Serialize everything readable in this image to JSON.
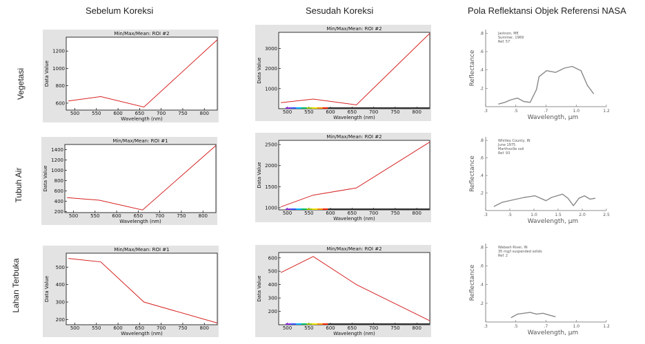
{
  "columns": [
    "Sebelum Koreksi",
    "Sesudah Koreksi",
    "Pola Reflektansi Objek Referensi NASA"
  ],
  "rows": [
    "Vegetasi",
    "Tubuh Air",
    "Lahan Terbuka"
  ],
  "chart_data": [
    {
      "id": "veg-before",
      "type": "line",
      "title": "Min/Max/Mean: ROI #2",
      "xlabel": "Wavelength (nm)",
      "ylabel": "Data Value",
      "xlim": [
        480,
        830
      ],
      "ylim": [
        520,
        1360
      ],
      "xticks": [
        500,
        550,
        600,
        650,
        700,
        750,
        800
      ],
      "yticks": [
        600,
        800,
        1000,
        1200
      ],
      "x": [
        485,
        560,
        660,
        830
      ],
      "y": [
        625,
        675,
        555,
        1330
      ],
      "color": "#d62020"
    },
    {
      "id": "veg-after",
      "type": "line",
      "title": "Min/Max/Mean: ROI #2",
      "xlabel": "Wavelength (nm)",
      "ylabel": "Data Value",
      "xlim": [
        480,
        830
      ],
      "ylim": [
        0,
        3800
      ],
      "xticks": [
        500,
        550,
        600,
        650,
        700,
        750,
        800
      ],
      "yticks": [
        1000,
        2000,
        3000
      ],
      "x": [
        485,
        560,
        660,
        830
      ],
      "y": [
        300,
        480,
        190,
        3750
      ],
      "color": "#d62020"
    },
    {
      "id": "water-before",
      "type": "line",
      "title": "Min/Max/Mean: ROI #1",
      "xlabel": "Wavelength (nm)",
      "ylabel": "Data Value",
      "xlim": [
        480,
        830
      ],
      "ylim": [
        180,
        1500
      ],
      "xticks": [
        500,
        550,
        600,
        650,
        700,
        750,
        800
      ],
      "yticks": [
        200,
        400,
        600,
        800,
        1000,
        1200,
        1400
      ],
      "x": [
        485,
        560,
        660,
        830
      ],
      "y": [
        470,
        420,
        230,
        1480
      ],
      "color": "#d62020"
    },
    {
      "id": "water-after",
      "type": "line",
      "title": "Min/Max/Mean: ROI #2",
      "xlabel": "Wavelength (nm)",
      "ylabel": "Data Value",
      "xlim": [
        480,
        830
      ],
      "ylim": [
        950,
        2600
      ],
      "xticks": [
        500,
        550,
        600,
        650,
        700,
        750,
        800
      ],
      "yticks": [
        1000,
        1500,
        2000,
        2500
      ],
      "x": [
        485,
        560,
        660,
        830
      ],
      "y": [
        1020,
        1300,
        1470,
        2560
      ],
      "color": "#d62020"
    },
    {
      "id": "soil-before",
      "type": "line",
      "title": "Min/Max/Mean: ROI #1",
      "xlabel": "Wavelength (nm)",
      "ylabel": "Data Value",
      "xlim": [
        480,
        830
      ],
      "ylim": [
        170,
        580
      ],
      "xticks": [
        500,
        550,
        600,
        650,
        700,
        750,
        800
      ],
      "yticks": [
        200,
        300,
        400,
        500
      ],
      "x": [
        485,
        560,
        660,
        830
      ],
      "y": [
        550,
        530,
        300,
        180
      ],
      "color": "#d62020"
    },
    {
      "id": "soil-after",
      "type": "line",
      "title": "Min/Max/Mean: ROI #2",
      "xlabel": "Wavelength (nm)",
      "ylabel": "Data Value",
      "xlim": [
        480,
        830
      ],
      "ylim": [
        100,
        640
      ],
      "xticks": [
        500,
        550,
        600,
        650,
        700,
        750,
        800
      ],
      "yticks": [
        200,
        300,
        400,
        500,
        600
      ],
      "x": [
        485,
        560,
        660,
        830
      ],
      "y": [
        490,
        610,
        400,
        130
      ],
      "color": "#d62020"
    },
    {
      "id": "nasa-veg",
      "type": "line",
      "xlabel": "Wavelength, μm",
      "ylabel": "Reflectance",
      "xlim": [
        0.3,
        1.25
      ],
      "ylim": [
        0,
        0.9
      ],
      "xticks": [
        ".3",
        ".5",
        ".7",
        "1.0",
        "1.2"
      ],
      "yticks": [
        ".2",
        ".4",
        ".6",
        ".8"
      ],
      "note": [
        "Jackson, ME",
        "Summer, 1969",
        "Ref. 57"
      ],
      "x": [
        0.4,
        0.45,
        0.5,
        0.55,
        0.6,
        0.65,
        0.7,
        0.72,
        0.78,
        0.85,
        0.92,
        0.98,
        1.05,
        1.1,
        1.15
      ],
      "y": [
        0.03,
        0.05,
        0.08,
        0.1,
        0.06,
        0.05,
        0.2,
        0.35,
        0.42,
        0.4,
        0.45,
        0.47,
        0.42,
        0.25,
        0.15
      ],
      "color": "#888888"
    },
    {
      "id": "nasa-water",
      "type": "line",
      "xlabel": "Wavelength, μm",
      "ylabel": "Reflectance",
      "xlim": [
        0.3,
        2.5
      ],
      "ylim": [
        0,
        0.9
      ],
      "xticks": [
        ".3",
        ".5",
        "1.0",
        "1.5",
        "2.0",
        "2.5"
      ],
      "yticks": [
        ".2",
        ".4",
        ".6",
        ".8"
      ],
      "note": [
        "Whitley County, IN",
        "June 1975",
        "Marthsville soil",
        "Ref. 93"
      ],
      "x": [
        0.45,
        0.6,
        0.8,
        1.0,
        1.2,
        1.4,
        1.5,
        1.7,
        1.8,
        1.9,
        2.0,
        2.1,
        2.2,
        2.3
      ],
      "y": [
        0.05,
        0.1,
        0.13,
        0.16,
        0.18,
        0.12,
        0.16,
        0.2,
        0.15,
        0.06,
        0.15,
        0.18,
        0.14,
        0.15
      ],
      "color": "#888888"
    },
    {
      "id": "nasa-soil",
      "type": "line",
      "xlabel": "Wavelength, μm",
      "ylabel": "Reflectance",
      "xlim": [
        0.3,
        1.25
      ],
      "ylim": [
        0,
        0.9
      ],
      "xticks": [
        ".3",
        ".5",
        ".7",
        "1.0",
        "1.2"
      ],
      "yticks": [
        ".2",
        ".4",
        ".6",
        ".8"
      ],
      "note": [
        "Wabash River, IN",
        "35 mg/l suspended solids",
        "Ref. 2"
      ],
      "x": [
        0.5,
        0.55,
        0.6,
        0.65,
        0.7,
        0.75,
        0.8,
        0.85
      ],
      "y": [
        0.05,
        0.09,
        0.1,
        0.11,
        0.09,
        0.1,
        0.08,
        0.06
      ],
      "color": "#888888"
    }
  ]
}
